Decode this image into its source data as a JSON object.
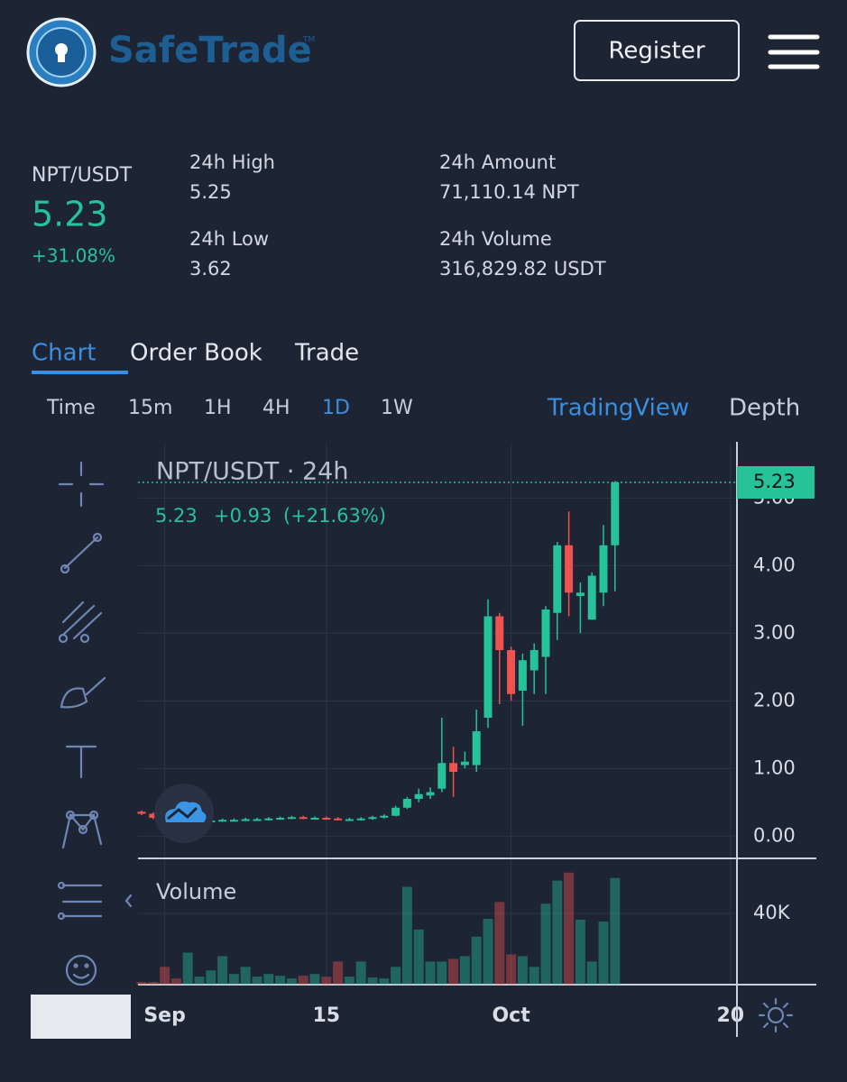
{
  "header": {
    "brand": "SafeTrade",
    "trademark": "TM",
    "register": "Register"
  },
  "ticker": {
    "pair": "NPT/USDT",
    "price": "5.23",
    "change": "+31.08%",
    "stats": [
      {
        "label": "24h High",
        "value": "5.25"
      },
      {
        "label": "24h Low",
        "value": "3.62"
      },
      {
        "label": "24h Amount",
        "value": "71,110.14 NPT"
      },
      {
        "label": "24h Volume",
        "value": "316,829.82 USDT"
      }
    ]
  },
  "tabs": {
    "items": [
      "Chart",
      "Order Book",
      "Trade"
    ],
    "active": 0
  },
  "intervals": {
    "items": [
      "Time",
      "15m",
      "1H",
      "4H",
      "1D",
      "1W"
    ],
    "active": 4
  },
  "views": {
    "items": [
      "TradingView",
      "Depth"
    ],
    "active": 0
  },
  "chart_data": {
    "type": "candlestick",
    "title": "NPT/USDT · 24h",
    "legend": {
      "close": "5.23",
      "change": "+0.93",
      "percent": "(+21.63%)"
    },
    "volume_label": "Volume",
    "categories": [
      null,
      null,
      "Sep",
      null,
      null,
      null,
      null,
      null,
      null,
      null,
      null,
      null,
      null,
      null,
      null,
      null,
      "15",
      null,
      null,
      null,
      null,
      null,
      null,
      null,
      null,
      null,
      null,
      null,
      null,
      null,
      null,
      null,
      "Oct",
      null,
      null,
      null,
      null,
      null,
      null,
      null,
      null,
      null,
      null,
      null,
      null,
      null,
      null,
      null,
      null,
      null,
      null,
      "20"
    ],
    "open": [
      0.36,
      0.33,
      0.27,
      0.22,
      0.21,
      0.22,
      0.22,
      0.23,
      0.24,
      0.24,
      0.25,
      0.25,
      0.26,
      0.27,
      0.28,
      0.27,
      0.27,
      0.26,
      0.25,
      0.25,
      0.26,
      0.28,
      0.3,
      0.42,
      0.55,
      0.6,
      0.7,
      1.08,
      1.05,
      1.05,
      1.75,
      3.25,
      2.75,
      2.15,
      2.45,
      2.65,
      3.3,
      4.3,
      3.55,
      3.2,
      3.6,
      4.3,
      null,
      null,
      null,
      null,
      null,
      null,
      null,
      null,
      null,
      null
    ],
    "high": [
      0.38,
      0.35,
      0.29,
      0.24,
      0.24,
      0.24,
      0.25,
      0.26,
      0.26,
      0.27,
      0.27,
      0.28,
      0.29,
      0.3,
      0.3,
      0.29,
      0.29,
      0.28,
      0.27,
      0.28,
      0.3,
      0.32,
      0.45,
      0.58,
      0.7,
      0.72,
      1.75,
      1.32,
      1.25,
      1.87,
      3.5,
      3.3,
      2.8,
      2.7,
      2.85,
      3.4,
      4.35,
      4.8,
      3.75,
      3.9,
      4.6,
      5.25,
      null,
      null,
      null,
      null,
      null,
      null,
      null,
      null,
      null,
      null
    ],
    "low": [
      0.31,
      0.25,
      0.2,
      0.19,
      0.19,
      0.2,
      0.2,
      0.21,
      0.22,
      0.22,
      0.23,
      0.23,
      0.24,
      0.25,
      0.25,
      0.25,
      0.24,
      0.23,
      0.23,
      0.23,
      0.24,
      0.26,
      0.29,
      0.4,
      0.5,
      0.55,
      0.65,
      0.58,
      1.0,
      0.95,
      1.6,
      1.95,
      2.0,
      1.63,
      2.1,
      2.1,
      2.9,
      3.25,
      3.0,
      3.2,
      3.4,
      3.62,
      null,
      null,
      null,
      null,
      null,
      null,
      null,
      null,
      null,
      null
    ],
    "close": [
      0.33,
      0.27,
      0.22,
      0.21,
      0.22,
      0.22,
      0.23,
      0.24,
      0.24,
      0.25,
      0.25,
      0.26,
      0.27,
      0.28,
      0.27,
      0.27,
      0.26,
      0.25,
      0.25,
      0.26,
      0.28,
      0.3,
      0.42,
      0.55,
      0.62,
      0.65,
      1.08,
      0.95,
      1.1,
      1.55,
      3.25,
      2.75,
      2.1,
      2.6,
      2.75,
      3.35,
      4.3,
      3.6,
      3.6,
      3.85,
      4.3,
      5.23,
      null,
      null,
      null,
      null,
      null,
      null,
      null,
      null,
      null,
      null
    ],
    "volume": [
      1500,
      1500,
      10000,
      3500,
      18000,
      4500,
      8000,
      16000,
      6000,
      10000,
      4500,
      6000,
      5000,
      3500,
      5000,
      6000,
      4500,
      13000,
      4500,
      13000,
      4000,
      3500,
      10000,
      55000,
      31000,
      13000,
      13000,
      14500,
      16000,
      27000,
      37000,
      46500,
      17000,
      16000,
      10000,
      45500,
      58500,
      63000,
      36500,
      13000,
      35500,
      60000,
      null,
      null,
      null,
      null,
      null,
      null,
      null,
      null,
      null,
      null
    ],
    "up_color": "#26c29a",
    "down_color": "#ef5350",
    "ylim": [
      -0.33,
      5.83
    ],
    "yticks": [
      {
        "value": 0,
        "label": "0.00"
      },
      {
        "value": 1,
        "label": "1.00"
      },
      {
        "value": 2,
        "label": "2.00"
      },
      {
        "value": 3,
        "label": "3.00"
      },
      {
        "value": 4,
        "label": "4.00"
      },
      {
        "value": 5,
        "label": "5.00"
      }
    ],
    "volume_lim": [
      0,
      71000
    ],
    "volume_ticks": [
      {
        "value": 40000,
        "label": "40K"
      }
    ],
    "grid": true
  }
}
